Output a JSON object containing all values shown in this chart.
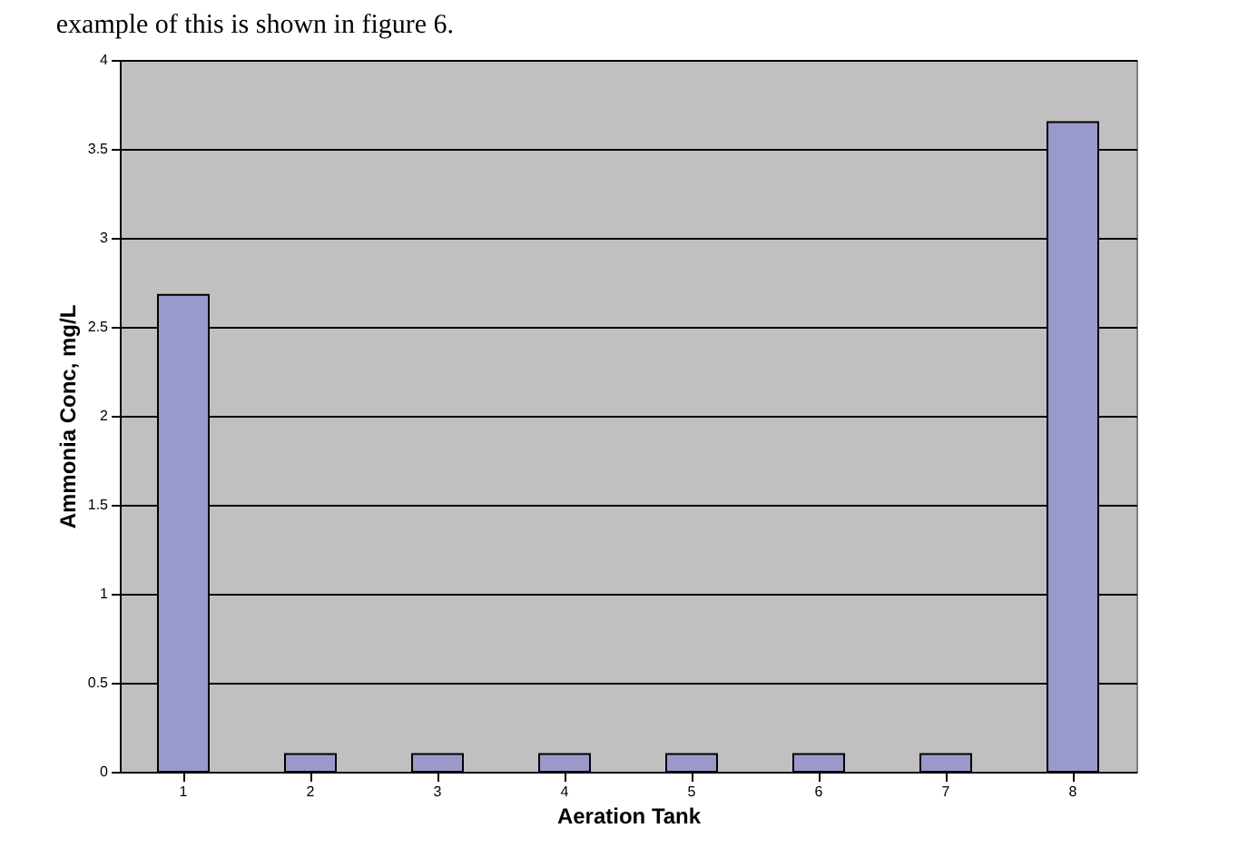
{
  "chart_data": {
    "type": "bar",
    "xlabel": "Aeration Tank",
    "ylabel": "Ammonia Conc, mg/L",
    "annotations": [
      "example of this is shown in figure 6."
    ],
    "categories": [
      "1",
      "2",
      "3",
      "4",
      "5",
      "6",
      "7",
      "8"
    ],
    "values": [
      2.68,
      0.1,
      0.1,
      0.1,
      0.1,
      0.1,
      0.1,
      3.65
    ],
    "color": "#9999cc",
    "ylim": [
      0,
      4
    ],
    "yticks": [
      0,
      0.5,
      1,
      1.5,
      2,
      2.5,
      3,
      3.5,
      4
    ],
    "grid": "y"
  }
}
